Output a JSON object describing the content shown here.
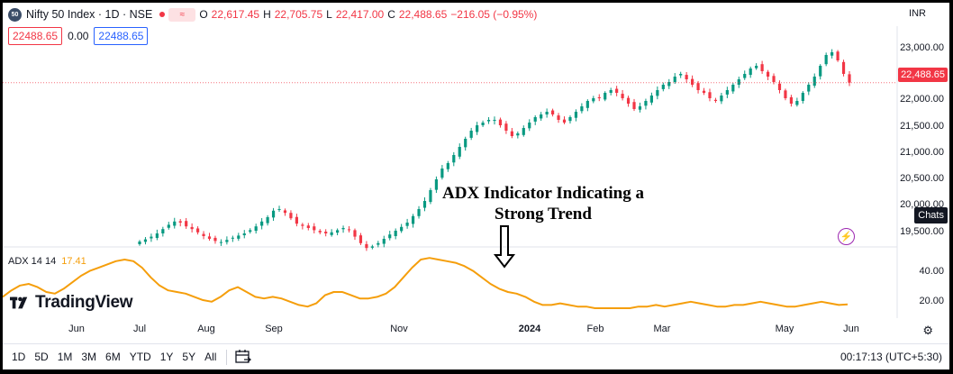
{
  "header": {
    "symbol_badge": "50",
    "title": "Nifty 50 Index · 1D · NSE",
    "compare_icon": "≈",
    "ohlc": [
      {
        "k": "O",
        "v": "22,617.45"
      },
      {
        "k": "H",
        "v": "22,705.75"
      },
      {
        "k": "L",
        "v": "22,417.00"
      },
      {
        "k": "C",
        "v": "22,488.65"
      },
      {
        "k": "",
        "v": "−216.05 (−0.95%)"
      }
    ],
    "currency": "INR"
  },
  "price_boxes": {
    "sell": "22488.65",
    "spread": "0.00",
    "buy": "22488.65"
  },
  "price_axis": {
    "labels": [
      "23,000.00",
      "22,000.00",
      "21,500.00",
      "21,000.00",
      "20,500.00",
      "20,000.00",
      "19,500.00"
    ],
    "last_price": "22,488.65",
    "chats": "Chats"
  },
  "adx": {
    "name": "ADX 14 14",
    "value": "17.41",
    "axis_labels": [
      "40.00",
      "20.00"
    ],
    "color": "#f59e0b"
  },
  "annotation": {
    "line1": "ADX Indicator Indicating a",
    "line2": "Strong Trend"
  },
  "logo": "TradingView",
  "time_axis": [
    "Jun",
    "Jul",
    "Aug",
    "Sep",
    "Nov",
    "2024",
    "Feb",
    "Mar",
    "May",
    "Jun"
  ],
  "toolbar": {
    "timeframes": [
      "1D",
      "5D",
      "1M",
      "3M",
      "6M",
      "YTD",
      "1Y",
      "5Y",
      "All"
    ],
    "clock": "00:17:13 (UTC+5:30)"
  },
  "chart_data": {
    "type": "line",
    "price_series": {
      "ylim": [
        19500,
        23300
      ],
      "closes": [
        19550,
        19590,
        19640,
        19700,
        19780,
        19860,
        19920,
        19900,
        19830,
        19780,
        19720,
        19650,
        19600,
        19560,
        19540,
        19580,
        19620,
        19660,
        19700,
        19760,
        19830,
        19920,
        20000,
        20120,
        20150,
        20080,
        19980,
        19880,
        19840,
        19800,
        19760,
        19720,
        19700,
        19720,
        19760,
        19800,
        19760,
        19640,
        19520,
        19430,
        19460,
        19520,
        19600,
        19680,
        19750,
        19820,
        19900,
        20020,
        20150,
        20300,
        20500,
        20700,
        20900,
        21000,
        21150,
        21300,
        21450,
        21600,
        21700,
        21750,
        21800,
        21800,
        21700,
        21600,
        21500,
        21550,
        21650,
        21750,
        21850,
        21900,
        21950,
        21900,
        21800,
        21750,
        21850,
        21950,
        22050,
        22150,
        22200,
        22200,
        22300,
        22350,
        22300,
        22200,
        22100,
        22000,
        22050,
        22150,
        22250,
        22350,
        22450,
        22500,
        22600,
        22650,
        22550,
        22450,
        22350,
        22300,
        22200,
        22150,
        22250,
        22350,
        22450,
        22550,
        22650,
        22750,
        22800,
        22700,
        22600,
        22500,
        22350,
        22200,
        22100,
        22150,
        22300,
        22450,
        22600,
        22800,
        23000,
        23050,
        22900,
        22650,
        22488
      ]
    },
    "adx_series": {
      "ylim": [
        10,
        50
      ],
      "values": [
        22,
        26,
        29,
        30,
        28,
        25,
        24,
        27,
        31,
        35,
        38,
        40,
        42,
        44,
        45,
        44,
        40,
        34,
        29,
        26,
        25,
        24,
        22,
        20,
        19,
        22,
        26,
        28,
        25,
        22,
        21,
        22,
        21,
        19,
        17,
        16,
        18,
        23,
        25,
        25,
        23,
        21,
        21,
        22,
        24,
        28,
        34,
        40,
        45,
        46,
        45,
        44,
        43,
        41,
        38,
        34,
        30,
        27,
        25,
        24,
        22,
        19,
        17,
        17,
        18,
        17,
        16,
        16,
        15,
        15,
        15,
        15,
        15,
        16,
        16,
        17,
        16,
        17,
        18,
        19,
        18,
        17,
        16,
        16,
        17,
        17,
        18,
        19,
        18,
        17,
        16,
        16,
        17,
        18,
        19,
        18,
        17,
        17.41
      ]
    }
  }
}
